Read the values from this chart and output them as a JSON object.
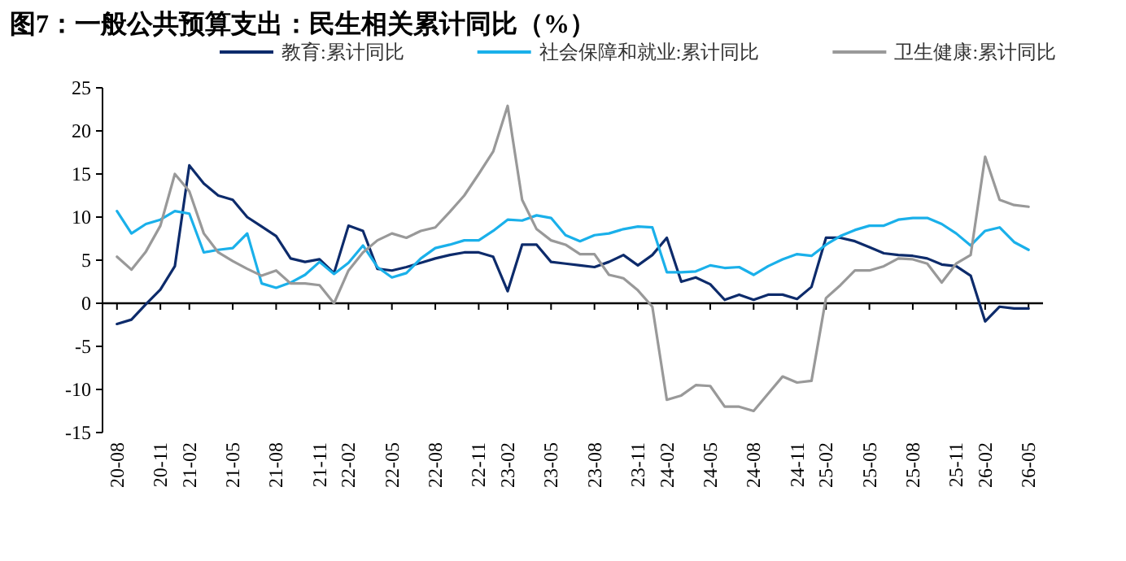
{
  "chart_data": {
    "type": "line",
    "title": "图7：一般公共预算支出：民生相关累计同比（%）",
    "categories": [
      "20-08",
      null,
      null,
      "20-11",
      null,
      "21-02",
      null,
      null,
      "21-05",
      null,
      null,
      "21-08",
      null,
      null,
      "21-11",
      null,
      "22-02",
      null,
      null,
      "22-05",
      null,
      null,
      "22-08",
      null,
      null,
      "22-11",
      null,
      "23-02",
      null,
      null,
      "23-05",
      null,
      null,
      "23-08",
      null,
      null,
      "23-11",
      null,
      "24-02",
      null,
      null,
      "24-05",
      null,
      null,
      "24-08",
      null,
      null,
      "24-11",
      null,
      "25-02",
      null,
      null,
      "25-05",
      null,
      null,
      "25-08",
      null,
      null,
      "25-11",
      null,
      "26-02",
      null,
      null,
      "26-05"
    ],
    "series": [
      {
        "name": "教育:累计同比",
        "color": "#0d2b6b",
        "values": [
          -2.4,
          -1.9,
          -0.1,
          1.6,
          4.3,
          16.0,
          13.9,
          12.5,
          12.0,
          10.0,
          8.9,
          7.8,
          5.2,
          4.8,
          5.1,
          3.5,
          9.0,
          8.4,
          4.0,
          3.8,
          4.2,
          4.7,
          5.2,
          5.6,
          5.9,
          5.9,
          5.4,
          1.4,
          6.8,
          6.8,
          4.8,
          4.6,
          4.4,
          4.2,
          4.8,
          5.6,
          4.4,
          5.6,
          7.6,
          2.5,
          3.0,
          2.2,
          0.4,
          1.0,
          0.4,
          1.0,
          1.0,
          0.5,
          1.9,
          7.6,
          7.6,
          7.2,
          6.5,
          5.8,
          5.6,
          5.5,
          5.2,
          4.5,
          4.3,
          3.2,
          -2.1,
          -0.4,
          -0.6,
          -0.6
        ]
      },
      {
        "name": "社会保障和就业:累计同比",
        "color": "#1ab0ea",
        "values": [
          10.7,
          8.1,
          9.2,
          9.7,
          10.7,
          10.4,
          5.9,
          6.2,
          6.4,
          8.1,
          2.3,
          1.8,
          2.4,
          3.3,
          4.8,
          3.4,
          4.7,
          6.7,
          4.2,
          3.0,
          3.5,
          5.2,
          6.4,
          6.8,
          7.3,
          7.3,
          8.4,
          9.7,
          9.6,
          10.2,
          9.9,
          7.9,
          7.2,
          7.9,
          8.1,
          8.6,
          8.9,
          8.8,
          3.6,
          3.6,
          3.7,
          4.4,
          4.1,
          4.2,
          3.3,
          4.3,
          5.1,
          5.7,
          5.5,
          6.8,
          7.8,
          8.5,
          9.0,
          9.0,
          9.7,
          9.9,
          9.9,
          9.2,
          8.1,
          6.7,
          8.4,
          8.8,
          7.1,
          6.2
        ]
      },
      {
        "name": "卫生健康:累计同比",
        "color": "#999999",
        "values": [
          5.4,
          3.9,
          6.0,
          9.0,
          15.0,
          13.0,
          8.1,
          5.9,
          4.9,
          4.0,
          3.2,
          3.8,
          2.3,
          2.3,
          2.1,
          0.0,
          3.8,
          5.9,
          7.3,
          8.1,
          7.6,
          8.4,
          8.8,
          10.6,
          12.5,
          15.0,
          17.6,
          22.9,
          12.0,
          8.6,
          7.3,
          6.8,
          5.7,
          5.7,
          3.3,
          2.9,
          1.5,
          -0.4,
          -11.2,
          -10.7,
          -9.5,
          -9.6,
          -12.0,
          -12.0,
          -12.5,
          -10.5,
          -8.5,
          -9.2,
          -9.0,
          0.6,
          2.1,
          3.8,
          3.8,
          4.3,
          5.2,
          5.1,
          4.6,
          2.4,
          4.6,
          5.6,
          17.0,
          12.0,
          11.4,
          11.2
        ]
      }
    ],
    "ylim": [
      -15,
      25
    ],
    "yticks": [
      -15,
      -10,
      -5,
      0,
      5,
      10,
      15,
      20,
      25
    ],
    "legend": "top",
    "marker": "none",
    "line_style": "solid"
  }
}
